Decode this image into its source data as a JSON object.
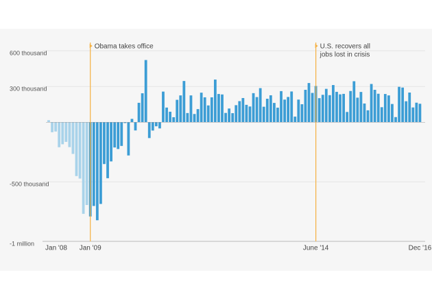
{
  "chart_data": {
    "type": "bar",
    "categories": [
      "Jan '08",
      null,
      null,
      null,
      null,
      null,
      null,
      null,
      null,
      null,
      null,
      null,
      "Jan '09",
      null,
      null,
      null,
      null,
      null,
      null,
      null,
      null,
      null,
      null,
      null,
      null,
      null,
      null,
      null,
      null,
      null,
      null,
      null,
      null,
      null,
      null,
      null,
      null,
      null,
      null,
      null,
      null,
      null,
      null,
      null,
      null,
      null,
      null,
      null,
      null,
      null,
      null,
      null,
      null,
      null,
      null,
      null,
      null,
      null,
      null,
      null,
      null,
      null,
      null,
      null,
      null,
      null,
      null,
      null,
      null,
      null,
      null,
      null,
      null,
      null,
      null,
      null,
      null,
      "June '14",
      null,
      null,
      null,
      null,
      null,
      null,
      null,
      null,
      null,
      null,
      null,
      null,
      null,
      null,
      null,
      null,
      null,
      null,
      null,
      null,
      null,
      null,
      null,
      null,
      null,
      null,
      null,
      null,
      null,
      "Dec '16"
    ],
    "series": [
      {
        "color": "#a9d3ea",
        "values": [
          17000,
          -84000,
          -78000,
          -210000,
          -185000,
          -165000,
          -209000,
          -266000,
          -452000,
          -473000,
          -769000,
          -695000,
          null,
          null,
          null,
          null,
          null,
          null,
          null,
          null,
          null,
          null,
          null,
          null,
          null,
          null,
          null,
          null,
          null,
          null,
          null,
          null,
          null,
          null,
          null,
          null,
          null,
          null,
          null,
          null,
          null,
          null,
          null,
          null,
          null,
          null,
          null,
          null,
          null,
          null,
          null,
          null,
          null,
          null,
          null,
          null,
          null,
          null,
          null,
          null,
          null,
          null,
          null,
          null,
          null,
          null,
          null,
          null,
          null,
          null,
          null,
          null,
          null,
          null,
          null,
          null,
          null,
          null,
          null,
          null,
          null,
          null,
          null,
          null,
          null,
          null,
          null,
          null,
          null,
          null,
          null,
          null,
          null,
          null,
          null,
          null,
          null,
          null,
          null,
          null,
          null,
          null,
          null,
          null,
          null,
          null,
          null,
          null
        ]
      },
      {
        "color": "#3c9dd5",
        "values": [
          null,
          null,
          null,
          null,
          null,
          null,
          null,
          null,
          null,
          null,
          null,
          null,
          -791000,
          -703000,
          -823000,
          -686000,
          -351000,
          -470000,
          -329000,
          -212000,
          -225000,
          -199000,
          -7000,
          -279000,
          28000,
          -69000,
          163000,
          243000,
          522000,
          -133000,
          -70000,
          -34000,
          -52000,
          257000,
          123000,
          88000,
          42000,
          188000,
          225000,
          346000,
          77000,
          225000,
          69000,
          110000,
          248000,
          209000,
          141000,
          209000,
          358000,
          237000,
          233000,
          78000,
          115000,
          76000,
          143000,
          177000,
          203000,
          146000,
          132000,
          244000,
          211000,
          286000,
          130000,
          197000,
          226000,
          162000,
          122000,
          261000,
          190000,
          212000,
          258000,
          47000,
          190000,
          151000,
          272000,
          329000,
          246000,
          304000,
          202000,
          230000,
          280000,
          227000,
          312000,
          255000,
          234000,
          238000,
          86000,
          262000,
          344000,
          206000,
          254000,
          157000,
          100000,
          321000,
          272000,
          239000,
          126000,
          237000,
          225000,
          153000,
          43000,
          297000,
          291000,
          176000,
          249000,
          124000,
          164000,
          155000
        ]
      }
    ],
    "ylim": [
      -1000000,
      600000
    ],
    "yticks": [
      {
        "value": 600000,
        "label": "600 thousand"
      },
      {
        "value": 300000,
        "label": "300 thousand"
      },
      {
        "value": -500000,
        "label": "-500 thousand"
      },
      {
        "value": -1000000,
        "label": "-1 million"
      }
    ],
    "annotations": [
      {
        "index": 12,
        "text": [
          "Obama takes office"
        ]
      },
      {
        "index": 77,
        "text": [
          "U.S. recovers all",
          "jobs lost in crisis"
        ]
      }
    ],
    "annotation_color": "#f5b041"
  }
}
